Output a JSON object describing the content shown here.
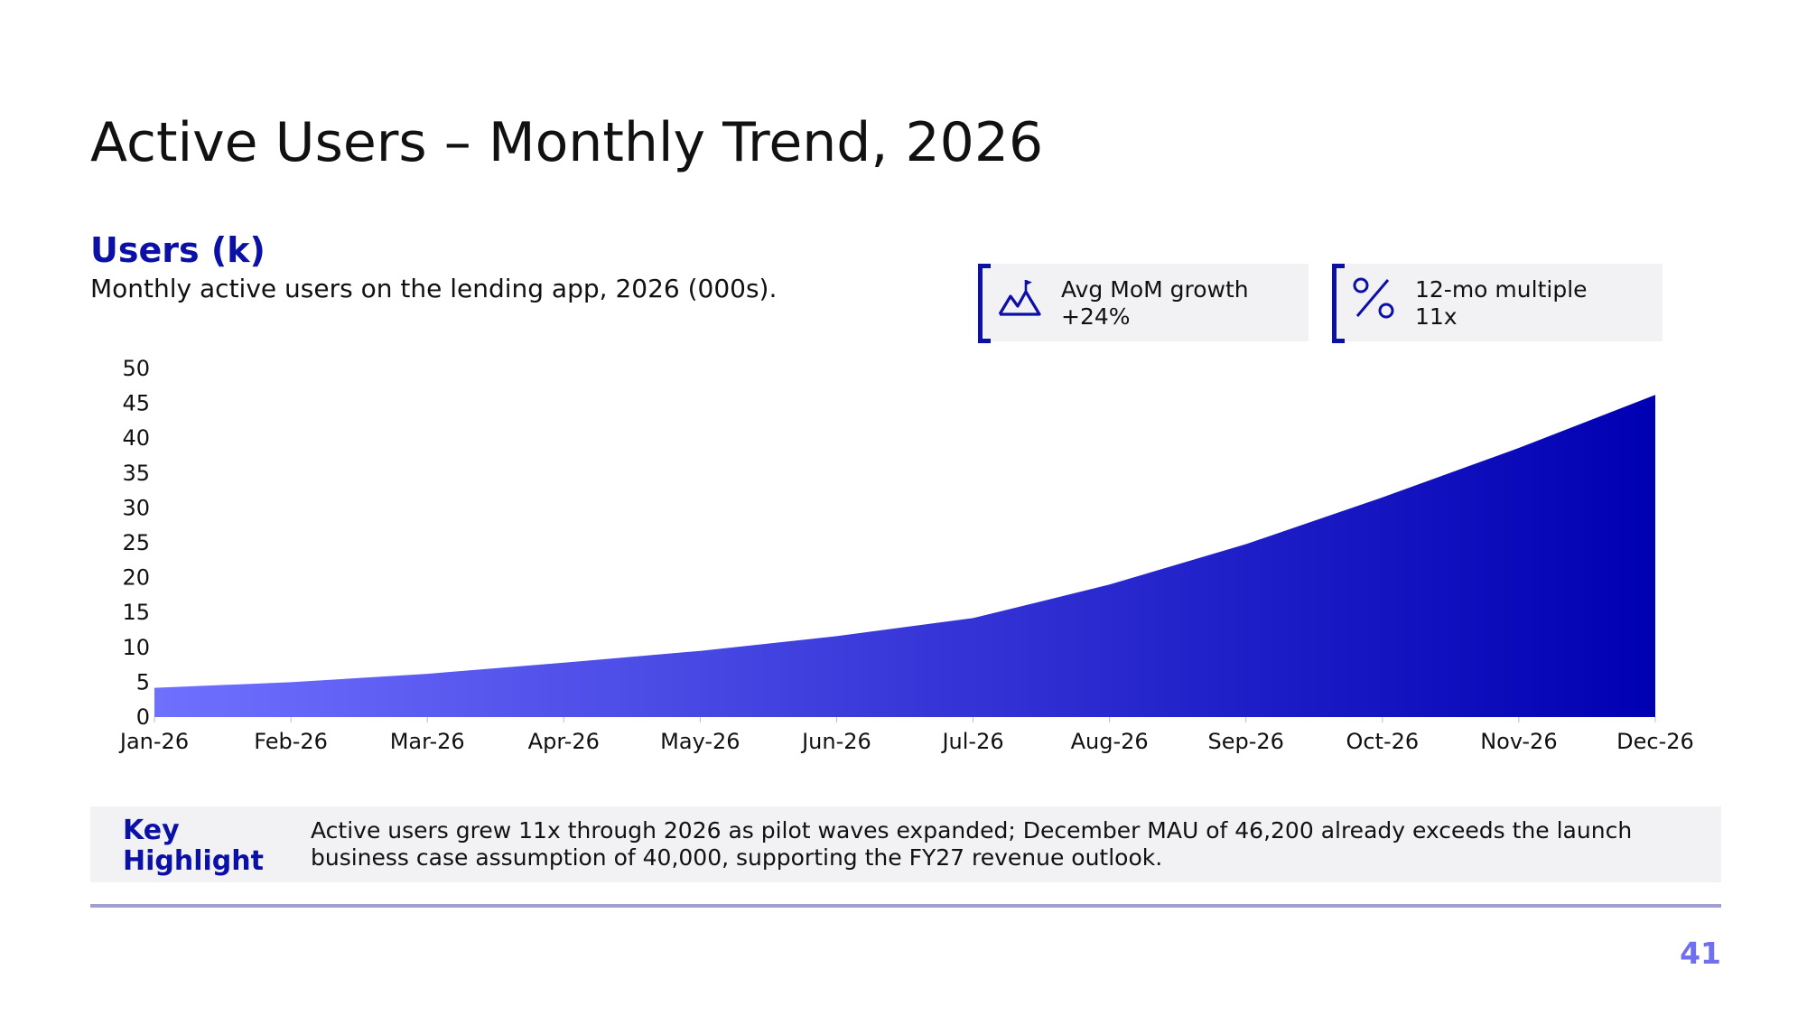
{
  "slide": {
    "title": "Active Users – Monthly Trend, 2026",
    "page_number": "41"
  },
  "section": {
    "title": "Users (k)",
    "subtitle": "Monthly active users on the lending app, 2026 (000s)."
  },
  "kpis": [
    {
      "label": "Avg MoM growth",
      "value": "+24%",
      "icon": "mountain-flag-icon"
    },
    {
      "label": "12-mo multiple",
      "value": "11x",
      "icon": "percent-icon"
    }
  ],
  "highlight": {
    "label": "Key Highlight",
    "text": "Active users grew 11x through 2026 as pilot waves expanded; December MAU of 46,200 already exceeds the launch business case assumption of 40,000, supporting the FY27 revenue outlook."
  },
  "colors": {
    "accent": "#0b10a6",
    "gradient_start": "#7070ff",
    "gradient_end": "#0000b3",
    "page_number": "#6f6ff0",
    "card_bg": "#f2f1f4",
    "rule": "#9f9fd1"
  },
  "chart_data": {
    "type": "area",
    "title": "",
    "xlabel": "",
    "ylabel": "",
    "categories": [
      "Jan-26",
      "Feb-26",
      "Mar-26",
      "Apr-26",
      "May-26",
      "Jun-26",
      "Jul-26",
      "Aug-26",
      "Sep-26",
      "Oct-26",
      "Nov-26",
      "Dec-26"
    ],
    "series": [
      {
        "values": [
          4.2,
          5.0,
          6.2,
          7.8,
          9.5,
          11.6,
          14.2,
          19.0,
          24.8,
          31.5,
          38.6,
          46.2
        ]
      }
    ],
    "ylim": [
      0,
      50
    ],
    "yticks": [
      0,
      5,
      10,
      15,
      20,
      25,
      30,
      35,
      40,
      45,
      50
    ],
    "grid": false,
    "legend": "none",
    "fill": "horizontal gradient light-to-dark blue"
  }
}
